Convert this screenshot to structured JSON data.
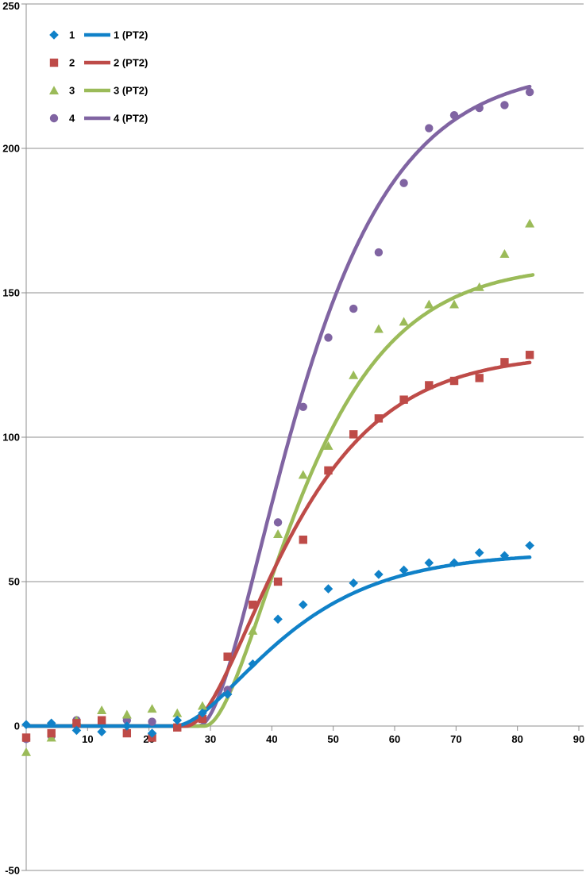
{
  "chart_data": {
    "type": "scatter",
    "title": "",
    "xlabel": "",
    "ylabel": "",
    "xlim": [
      0,
      90
    ],
    "ylim": [
      -50,
      250
    ],
    "x_ticks": [
      0,
      10,
      20,
      30,
      40,
      50,
      60,
      70,
      80,
      90
    ],
    "y_ticks": [
      -50,
      0,
      50,
      100,
      150,
      200,
      250
    ],
    "grid": true,
    "legend_position": "top-left-inside",
    "grid_color": "#8f8f8f",
    "series": [
      {
        "name": "1",
        "marker": "diamond",
        "color": "#1081c8",
        "points": [
          [
            0,
            0.5
          ],
          [
            4.1,
            1
          ],
          [
            8.2,
            -1.5
          ],
          [
            12.3,
            -2
          ],
          [
            16.4,
            0
          ],
          [
            20.5,
            -2.5
          ],
          [
            24.6,
            2
          ],
          [
            28.7,
            4.5
          ],
          [
            32.8,
            11
          ],
          [
            36.9,
            21.5
          ],
          [
            41,
            37
          ],
          [
            45.1,
            42
          ],
          [
            49.2,
            47.5
          ],
          [
            53.3,
            49.5
          ],
          [
            57.4,
            52.5
          ],
          [
            61.5,
            54
          ],
          [
            65.6,
            56.5
          ],
          [
            69.7,
            56.5
          ],
          [
            73.8,
            60
          ],
          [
            77.9,
            59
          ],
          [
            82,
            62.5
          ]
        ]
      },
      {
        "name": "2",
        "marker": "square",
        "color": "#be4b48",
        "points": [
          [
            0,
            -4
          ],
          [
            4.1,
            -2.5
          ],
          [
            8.2,
            1
          ],
          [
            12.3,
            2
          ],
          [
            16.4,
            -2.5
          ],
          [
            20.5,
            -4
          ],
          [
            24.6,
            -0.5
          ],
          [
            28.7,
            2.5
          ],
          [
            32.8,
            24
          ],
          [
            36.9,
            42
          ],
          [
            41,
            50
          ],
          [
            45.1,
            64.5
          ],
          [
            49.2,
            88.5
          ],
          [
            53.3,
            101
          ],
          [
            57.4,
            106.5
          ],
          [
            61.5,
            113
          ],
          [
            65.6,
            118
          ],
          [
            69.7,
            119.5
          ],
          [
            73.8,
            120.5
          ],
          [
            77.9,
            126
          ],
          [
            82,
            128.5
          ]
        ]
      },
      {
        "name": "3",
        "marker": "triangle",
        "color": "#9bbb59",
        "points": [
          [
            0,
            -9
          ],
          [
            4.1,
            -4
          ],
          [
            8.2,
            2
          ],
          [
            12.3,
            5.5
          ],
          [
            16.4,
            4
          ],
          [
            20.5,
            6
          ],
          [
            24.6,
            4.5
          ],
          [
            28.7,
            7
          ],
          [
            36.9,
            33
          ],
          [
            41,
            66.5
          ],
          [
            45.1,
            87
          ],
          [
            49.2,
            97
          ],
          [
            53.3,
            121.5
          ],
          [
            57.4,
            137.5
          ],
          [
            61.5,
            140
          ],
          [
            65.6,
            146
          ],
          [
            69.7,
            146
          ],
          [
            73.8,
            152
          ],
          [
            77.9,
            163.5
          ],
          [
            82,
            174
          ]
        ]
      },
      {
        "name": "4",
        "marker": "circle",
        "color": "#8064a2",
        "points": [
          [
            0,
            -4.5
          ],
          [
            4.1,
            -3.5
          ],
          [
            8.2,
            2
          ],
          [
            16.4,
            2
          ],
          [
            20.5,
            1.5
          ],
          [
            32.8,
            12.5
          ],
          [
            41,
            70.5
          ],
          [
            45.1,
            110.5
          ],
          [
            49.2,
            134.5
          ],
          [
            53.3,
            144.5
          ],
          [
            57.4,
            164
          ],
          [
            61.5,
            188
          ],
          [
            65.6,
            207
          ],
          [
            69.7,
            211.5
          ],
          [
            73.8,
            214
          ],
          [
            77.9,
            215
          ],
          [
            82,
            219.5
          ]
        ]
      }
    ],
    "fits": [
      {
        "name": "1 (PT2)",
        "color": "#1081c8",
        "dead_time": 24,
        "gain": 60,
        "tau": 10.5,
        "x_start": 0,
        "x_end": 82
      },
      {
        "name": "2 (PT2)",
        "color": "#be4b48",
        "dead_time": 26,
        "gain": 129,
        "tau": 10,
        "x_start": 0,
        "x_end": 82
      },
      {
        "name": "3 (PT2)",
        "color": "#9bbb59",
        "dead_time": 29,
        "gain": 160,
        "tau": 9.5,
        "x_start": 0,
        "x_end": 82.5
      },
      {
        "name": "4 (PT2)",
        "color": "#8064a2",
        "dead_time": 28,
        "gain": 228,
        "tau": 10,
        "x_start": 0,
        "x_end": 82
      }
    ],
    "fit_model": "critically damped second-order lag (PT2) with dead time: y=0 for x<t0, else y=K*(1-(1+s)*exp(-s)) with s=(x-t0)/tau"
  },
  "legend": {
    "entries": [
      {
        "marker_label": "1",
        "line_label": "1 (PT2)"
      },
      {
        "marker_label": "2",
        "line_label": "2 (PT2)"
      },
      {
        "marker_label": "3",
        "line_label": "3 (PT2)"
      },
      {
        "marker_label": "4",
        "line_label": "4 (PT2)"
      }
    ]
  }
}
